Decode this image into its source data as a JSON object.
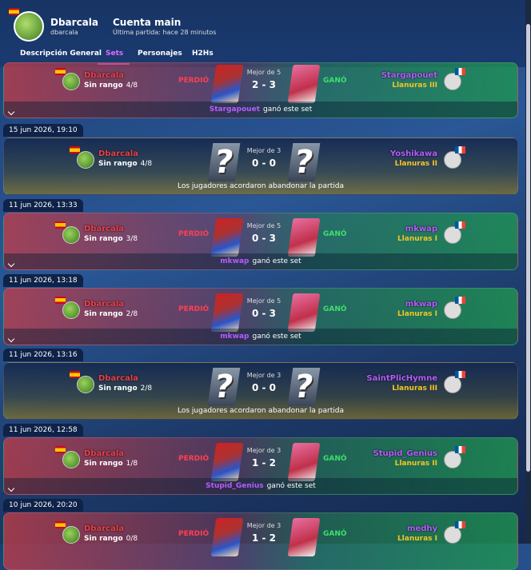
{
  "header": {
    "name": "Dbarcala",
    "handle": "dbarcala",
    "account": "Cuenta main",
    "last_match": "Última partida: hace 28 minutos"
  },
  "tabs": [
    "Descripción General",
    "Sets",
    "Personajes",
    "H2Hs"
  ],
  "unknown_character": "?",
  "sets": [
    {
      "left": {
        "name": "Dbarcala",
        "rank": "Sin rango",
        "progress": "4/8"
      },
      "left_result": "PERDIÓ",
      "format": "Mejor de 5",
      "score": "2 - 3",
      "right_result": "GANÓ",
      "right": {
        "name": "Stargapouet",
        "rank": "Llanuras III"
      },
      "footer": {
        "winner": "Stargapouet",
        "text": "ganó este set"
      }
    },
    {
      "date": "15 jun 2026, 19:10",
      "left": {
        "name": "Dbarcala",
        "rank": "Sin rango",
        "progress": "4/8"
      },
      "format": "Mejor de 3",
      "score": "0 - 0",
      "right": {
        "name": "Yoshikawa",
        "rank": "Llanuras II"
      },
      "footer": {
        "text": "Los jugadores acordaron abandonar la partida"
      }
    },
    {
      "date": "11 jun 2026, 13:33",
      "left": {
        "name": "Dbarcala",
        "rank": "Sin rango",
        "progress": "3/8"
      },
      "left_result": "PERDIÓ",
      "format": "Mejor de 5",
      "score": "0 - 3",
      "right_result": "GANÓ",
      "right": {
        "name": "mkwap",
        "rank": "Llanuras I"
      },
      "footer": {
        "winner": "mkwap",
        "text": "ganó este set"
      }
    },
    {
      "date": "11 jun 2026, 13:18",
      "left": {
        "name": "Dbarcala",
        "rank": "Sin rango",
        "progress": "2/8"
      },
      "left_result": "PERDIÓ",
      "format": "Mejor de 5",
      "score": "0 - 3",
      "right_result": "GANÓ",
      "right": {
        "name": "mkwap",
        "rank": "Llanuras I"
      },
      "footer": {
        "winner": "mkwap",
        "text": "ganó este set"
      }
    },
    {
      "date": "11 jun 2026, 13:16",
      "left": {
        "name": "Dbarcala",
        "rank": "Sin rango",
        "progress": "2/8"
      },
      "format": "Mejor de 3",
      "score": "0 - 0",
      "right": {
        "name": "SaintPlicHymne",
        "rank": "Llanuras III"
      },
      "footer": {
        "text": "Los jugadores acordaron abandonar la partida"
      }
    },
    {
      "date": "11 jun 2026, 12:58",
      "left": {
        "name": "Dbarcala",
        "rank": "Sin rango",
        "progress": "1/8"
      },
      "left_result": "PERDIÓ",
      "format": "Mejor de 3",
      "score": "1 - 2",
      "right_result": "GANÓ",
      "right": {
        "name": "Stupid_Genius",
        "rank": "Llanuras II"
      },
      "footer": {
        "winner": "Stupid_Genius",
        "text": "ganó este set"
      }
    },
    {
      "date": "10 jun 2026, 20:20",
      "left": {
        "name": "Dbarcala",
        "rank": "Sin rango",
        "progress": "0/8"
      },
      "left_result": "PERDIÓ",
      "format": "Mejor de 3",
      "score": "1 - 2",
      "right_result": "GANÓ",
      "right": {
        "name": "medhy",
        "rank": "Llanuras I"
      }
    }
  ]
}
